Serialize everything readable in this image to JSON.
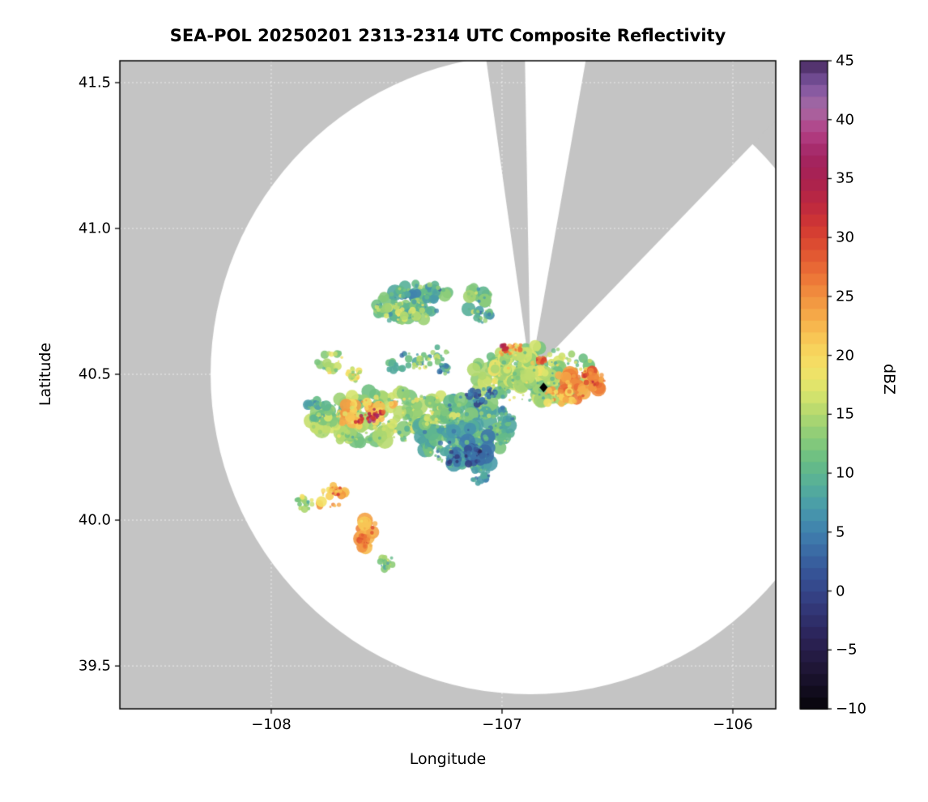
{
  "title": "SEA-POL 20250201 2313-2314 UTC Composite Reflectivity",
  "chart_data": {
    "type": "heatmap",
    "title": "SEA-POL 20250201 2313-2314 UTC Composite Reflectivity",
    "xlabel": "Longitude",
    "ylabel": "Latitude",
    "xlim": [
      -108.656,
      -105.814
    ],
    "ylim": [
      39.353,
      41.575
    ],
    "xticks": [
      -108,
      -107,
      -106
    ],
    "yticks": [
      39.5,
      40.0,
      40.5,
      41.0,
      41.5
    ],
    "grid": true,
    "background_color": "#c4c4c4",
    "coverage_color": "#ffffff",
    "gridline_color": "rgba(255,255,255,0.7)",
    "colorbar": {
      "label": "dBZ",
      "min": -10,
      "max": 45,
      "ticks": [
        -10,
        -5,
        0,
        5,
        10,
        15,
        20,
        25,
        30,
        35,
        40,
        45
      ],
      "colormap_stops": [
        [
          -10,
          "#060509"
        ],
        [
          -7,
          "#1c1330"
        ],
        [
          -4,
          "#2b2256"
        ],
        [
          -1,
          "#333b7e"
        ],
        [
          2,
          "#36589b"
        ],
        [
          5,
          "#3f7fae"
        ],
        [
          7,
          "#489aab"
        ],
        [
          9,
          "#55ae9a"
        ],
        [
          11,
          "#67bd85"
        ],
        [
          13,
          "#89cb79"
        ],
        [
          15,
          "#b1d86f"
        ],
        [
          17,
          "#dbe56c"
        ],
        [
          19,
          "#f4e167"
        ],
        [
          21,
          "#f8ce58"
        ],
        [
          23,
          "#f6af4b"
        ],
        [
          25,
          "#f1913f"
        ],
        [
          27,
          "#eb7036"
        ],
        [
          29,
          "#df5130"
        ],
        [
          31,
          "#d13732"
        ],
        [
          33,
          "#bc2740"
        ],
        [
          35,
          "#a82150"
        ],
        [
          37,
          "#a32563"
        ],
        [
          39,
          "#b33f85"
        ],
        [
          41,
          "#a76aa4"
        ],
        [
          43,
          "#7d55a0"
        ],
        [
          45,
          "#46295f"
        ]
      ]
    },
    "radar": {
      "center_lon": -106.877,
      "center_lat": 40.5,
      "radius_deg_lat": 1.097,
      "blocked_sectors_azimuth_deg": [
        [
          -8,
          -1
        ],
        [
          10,
          44
        ]
      ]
    },
    "site_marker": {
      "lon": -106.82,
      "lat": 40.455,
      "shape": "diamond",
      "color": "#000000"
    },
    "echoes_dbz_cells": [
      {
        "lon": -107.39,
        "lat": 40.745,
        "w": 0.34,
        "h": 0.13,
        "rot": -15,
        "dbz": 11
      },
      {
        "lon": -107.42,
        "lat": 40.72,
        "w": 0.22,
        "h": 0.07,
        "rot": -15,
        "dbz": 15
      },
      {
        "lon": -107.35,
        "lat": 40.78,
        "w": 0.18,
        "h": 0.07,
        "rot": -10,
        "dbz": 8
      },
      {
        "lon": -107.1,
        "lat": 40.75,
        "w": 0.12,
        "h": 0.11,
        "rot": 0,
        "dbz": 12
      },
      {
        "lon": -107.08,
        "lat": 40.7,
        "w": 0.08,
        "h": 0.06,
        "rot": 0,
        "dbz": 9
      },
      {
        "lon": -107.37,
        "lat": 40.555,
        "w": 0.3,
        "h": 0.065,
        "rot": -12,
        "dbz": 9
      },
      {
        "lon": -107.32,
        "lat": 40.545,
        "w": 0.14,
        "h": 0.045,
        "rot": -12,
        "dbz": 14
      },
      {
        "lon": -107.25,
        "lat": 40.52,
        "w": 0.05,
        "h": 0.04,
        "rot": 0,
        "dbz": 7
      },
      {
        "lon": -107.74,
        "lat": 40.54,
        "w": 0.14,
        "h": 0.07,
        "rot": -5,
        "dbz": 15
      },
      {
        "lon": -107.64,
        "lat": 40.5,
        "w": 0.06,
        "h": 0.05,
        "rot": 0,
        "dbz": 17
      },
      {
        "lon": -106.86,
        "lat": 40.5,
        "w": 0.55,
        "h": 0.2,
        "rot": -4,
        "dbz": 14
      },
      {
        "lon": -106.93,
        "lat": 40.52,
        "w": 0.25,
        "h": 0.12,
        "rot": 0,
        "dbz": 16
      },
      {
        "lon": -106.68,
        "lat": 40.465,
        "w": 0.22,
        "h": 0.11,
        "rot": -10,
        "dbz": 25
      },
      {
        "lon": -106.6,
        "lat": 40.48,
        "w": 0.1,
        "h": 0.07,
        "rot": 0,
        "dbz": 27
      },
      {
        "lon": -106.97,
        "lat": 40.585,
        "w": 0.14,
        "h": 0.035,
        "rot": -8,
        "dbz": 24
      },
      {
        "lon": -106.99,
        "lat": 40.59,
        "w": 0.03,
        "h": 0.025,
        "rot": 0,
        "dbz": 31
      },
      {
        "lon": -106.83,
        "lat": 40.55,
        "w": 0.04,
        "h": 0.03,
        "rot": 0,
        "dbz": 29
      },
      {
        "lon": -106.74,
        "lat": 40.42,
        "w": 0.18,
        "h": 0.06,
        "rot": 5,
        "dbz": 22
      },
      {
        "lon": -107.53,
        "lat": 40.36,
        "w": 0.62,
        "h": 0.18,
        "rot": -8,
        "dbz": 14
      },
      {
        "lon": -107.6,
        "lat": 40.37,
        "w": 0.28,
        "h": 0.09,
        "rot": -15,
        "dbz": 22
      },
      {
        "lon": -107.58,
        "lat": 40.355,
        "w": 0.17,
        "h": 0.04,
        "rot": -20,
        "dbz": 32
      },
      {
        "lon": -107.56,
        "lat": 40.35,
        "w": 0.06,
        "h": 0.025,
        "rot": -20,
        "dbz": 35
      },
      {
        "lon": -107.8,
        "lat": 40.38,
        "w": 0.1,
        "h": 0.07,
        "rot": 0,
        "dbz": 10
      },
      {
        "lon": -107.36,
        "lat": 40.3,
        "w": 0.18,
        "h": 0.08,
        "rot": -10,
        "dbz": 10
      },
      {
        "lon": -107.16,
        "lat": 40.3,
        "w": 0.4,
        "h": 0.26,
        "rot": 5,
        "dbz": 10
      },
      {
        "lon": -107.14,
        "lat": 40.26,
        "w": 0.2,
        "h": 0.14,
        "rot": 10,
        "dbz": 6
      },
      {
        "lon": -107.12,
        "lat": 40.22,
        "w": 0.09,
        "h": 0.07,
        "rot": 0,
        "dbz": 2
      },
      {
        "lon": -107.21,
        "lat": 40.21,
        "w": 0.06,
        "h": 0.05,
        "rot": 0,
        "dbz": 3
      },
      {
        "lon": -107.26,
        "lat": 40.345,
        "w": 0.16,
        "h": 0.06,
        "rot": -10,
        "dbz": 15
      },
      {
        "lon": -107.1,
        "lat": 40.155,
        "w": 0.09,
        "h": 0.06,
        "rot": 0,
        "dbz": 7
      },
      {
        "lon": -107.12,
        "lat": 40.42,
        "w": 0.08,
        "h": 0.05,
        "rot": 0,
        "dbz": 2
      },
      {
        "lon": -107.05,
        "lat": 40.44,
        "w": 0.05,
        "h": 0.04,
        "rot": 0,
        "dbz": 5
      },
      {
        "lon": -106.99,
        "lat": 40.36,
        "w": 0.09,
        "h": 0.06,
        "rot": 0,
        "dbz": 9
      },
      {
        "lon": -107.74,
        "lat": 40.08,
        "w": 0.13,
        "h": 0.08,
        "rot": -35,
        "dbz": 22
      },
      {
        "lon": -107.72,
        "lat": 40.1,
        "w": 0.05,
        "h": 0.03,
        "rot": 0,
        "dbz": 26
      },
      {
        "lon": -107.59,
        "lat": 39.96,
        "w": 0.09,
        "h": 0.15,
        "rot": 8,
        "dbz": 24
      },
      {
        "lon": -107.6,
        "lat": 39.93,
        "w": 0.05,
        "h": 0.05,
        "rot": 0,
        "dbz": 27
      },
      {
        "lon": -107.86,
        "lat": 40.06,
        "w": 0.08,
        "h": 0.05,
        "rot": 0,
        "dbz": 14
      },
      {
        "lon": -107.5,
        "lat": 39.855,
        "w": 0.06,
        "h": 0.05,
        "rot": 0,
        "dbz": 13
      }
    ]
  }
}
